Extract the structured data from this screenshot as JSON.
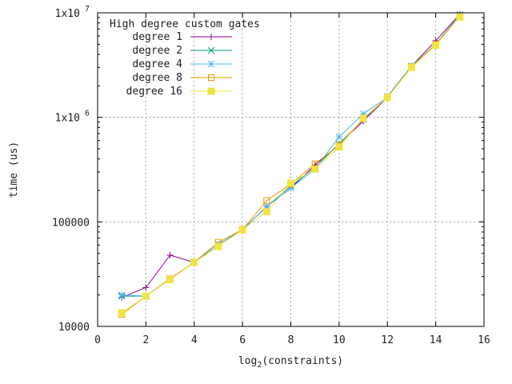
{
  "chart_data": {
    "type": "line",
    "xlabel_base": "log",
    "xlabel_sub": "2",
    "xlabel_rest": "(constraints)",
    "ylabel": "time (us)",
    "legend_title": "High degree custom gates",
    "legend_position": "top-left",
    "grid": true,
    "x_scale": "linear",
    "y_scale": "log",
    "xlim": [
      0,
      16
    ],
    "ylim": [
      10000,
      10000000
    ],
    "x_ticks": [
      0,
      2,
      4,
      6,
      8,
      10,
      12,
      14,
      16
    ],
    "x_tick_labels": [
      "0",
      "2",
      "4",
      "6",
      "8",
      "10",
      "12",
      "14",
      "16"
    ],
    "y_ticks": [
      10000,
      100000,
      1000000,
      10000000
    ],
    "y_tick_labels": [
      {
        "base": "10000",
        "exp": ""
      },
      {
        "base": "100000",
        "exp": ""
      },
      {
        "base": "1x10",
        "exp": "6"
      },
      {
        "base": "1x10",
        "exp": "7"
      }
    ],
    "x": [
      1,
      2,
      3,
      4,
      5,
      6,
      7,
      8,
      9,
      10,
      11,
      12,
      13,
      14,
      15
    ],
    "series": [
      {
        "name": "degree 1",
        "color": "#94008f",
        "marker": "plus",
        "values": [
          19000,
          23500,
          48000,
          41000,
          61000,
          84000,
          140000,
          210000,
          350000,
          550000,
          920000,
          1550000,
          3100000,
          5400000,
          9700000
        ]
      },
      {
        "name": "degree 2",
        "color": "#009e73",
        "marker": "cross",
        "values": [
          19500,
          19500,
          28500,
          41000,
          61000,
          84000,
          140000,
          220000,
          330000,
          560000,
          950000,
          1580000,
          3100000,
          5000000,
          9600000
        ]
      },
      {
        "name": "degree 4",
        "color": "#56b4e9",
        "marker": "star",
        "values": [
          20000,
          19500,
          28500,
          41000,
          61000,
          84000,
          140000,
          210000,
          320000,
          650000,
          1080000,
          1550000,
          3100000,
          5000000,
          9600000
        ]
      },
      {
        "name": "degree 8",
        "color": "#e69f00",
        "marker": "square-open",
        "values": [
          13000,
          19500,
          28500,
          41000,
          64000,
          84000,
          160000,
          230000,
          360000,
          540000,
          980000,
          1550000,
          3050000,
          5000000,
          9200000
        ]
      },
      {
        "name": "degree 16",
        "color": "#f0e442",
        "marker": "square-filled",
        "values": [
          13500,
          19500,
          28000,
          41000,
          58000,
          84000,
          125000,
          235000,
          320000,
          520000,
          980000,
          1550000,
          3000000,
          4900000,
          9100000
        ]
      }
    ]
  }
}
